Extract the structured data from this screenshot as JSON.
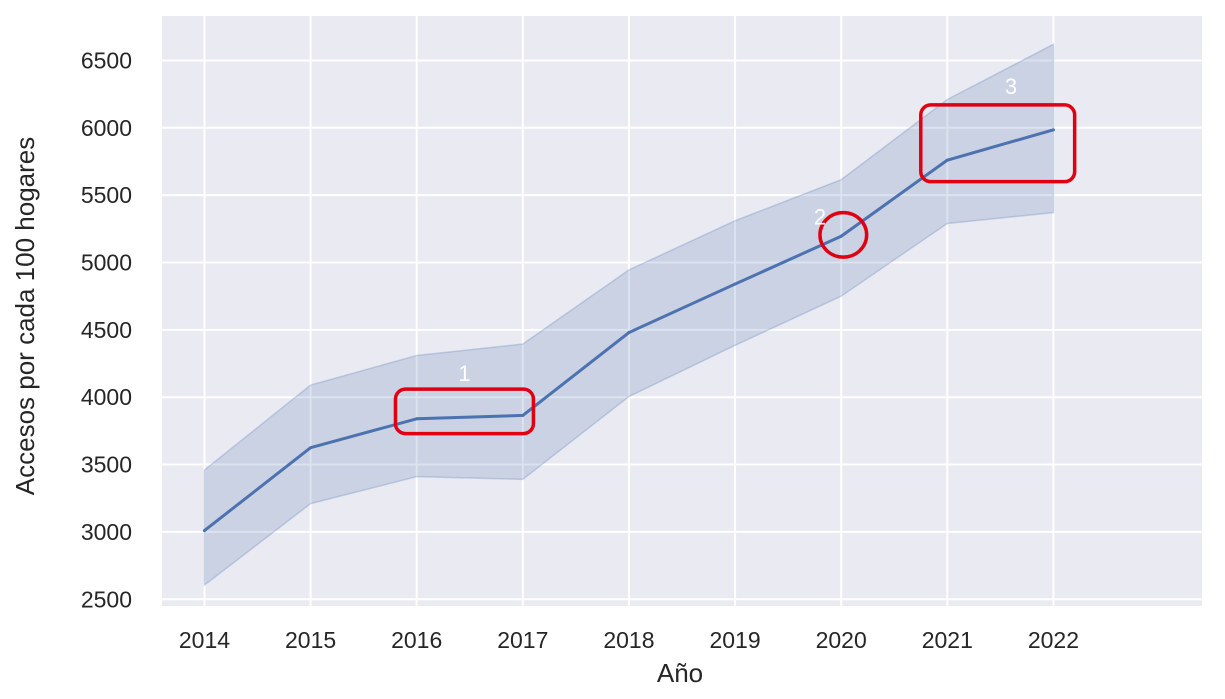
{
  "chart_data": {
    "type": "line",
    "title": "",
    "xlabel": "Año",
    "ylabel": "Accesos por cada 100 hogares",
    "x": [
      2014,
      2015,
      2016,
      2017,
      2018,
      2019,
      2020,
      2021,
      2022
    ],
    "x_tick_labels": [
      "2014",
      "2015",
      "2016",
      "2017",
      "2018",
      "2019",
      "2020",
      "2021",
      "2022"
    ],
    "y_ticks": [
      2500,
      3000,
      3500,
      4000,
      4500,
      5000,
      5500,
      6000,
      6500
    ],
    "y_tick_labels": [
      "2500",
      "3000",
      "3500",
      "4000",
      "4500",
      "5000",
      "5500",
      "6000",
      "6500"
    ],
    "xlim": [
      2013.6,
      2023.4
    ],
    "ylim": [
      2450,
      6830
    ],
    "grid": true,
    "series": [
      {
        "values": [
          3010,
          3625,
          3840,
          3865,
          4480,
          4840,
          5195,
          5760,
          5985
        ],
        "ci_upper": [
          3460,
          4090,
          4310,
          4395,
          4945,
          5310,
          5615,
          6210,
          6620
        ],
        "ci_lower": [
          2605,
          3210,
          3410,
          3390,
          4005,
          4385,
          4750,
          5290,
          5370
        ],
        "color": "#4c72b0"
      }
    ],
    "annotations": [
      {
        "label": "1",
        "shape": "rect",
        "x0": 2015.8,
        "x1": 2017.1,
        "y0": 3730,
        "y1": 4060,
        "label_x": 2016.45,
        "label_y": 4180
      },
      {
        "label": "2",
        "shape": "ellipse",
        "cx": 2020.02,
        "cy": 5205,
        "rx_years": 0.22,
        "ry_value": 165,
        "label_x": 2019.8,
        "label_y": 5340
      },
      {
        "label": "3",
        "shape": "rect",
        "x0": 2020.75,
        "x1": 2022.2,
        "y0": 5600,
        "y1": 6170,
        "label_x": 2021.6,
        "label_y": 6310
      }
    ],
    "colors": {
      "plot_bg": "#eaeaf2",
      "grid": "#ffffff",
      "line": "#4c72b0",
      "ci_fill": "#4c72b0",
      "annotation": "#e0000f",
      "annotation_label": "#ffffff"
    }
  }
}
